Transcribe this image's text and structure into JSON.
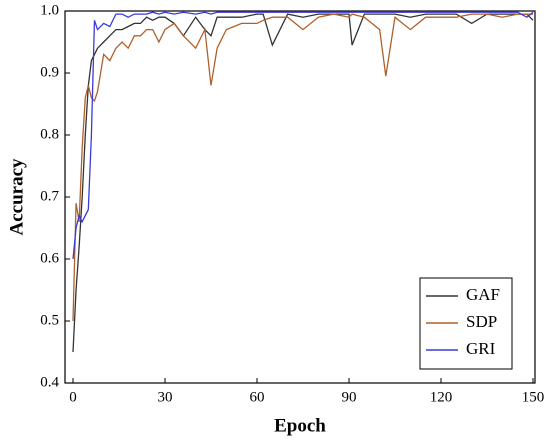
{
  "chart_data": {
    "type": "line",
    "x_label": "Epoch",
    "y_label": "Accuracy",
    "x": [
      0,
      1,
      2,
      3,
      4,
      5,
      6,
      7,
      8,
      10,
      12,
      14,
      16,
      18,
      20,
      22,
      24,
      26,
      28,
      30,
      33,
      36,
      40,
      43,
      45,
      47,
      50,
      55,
      60,
      62,
      65,
      70,
      75,
      80,
      85,
      90,
      91,
      95,
      100,
      102,
      105,
      110,
      115,
      120,
      125,
      130,
      135,
      140,
      145,
      148,
      150
    ],
    "series": [
      {
        "name": "GAF",
        "color": "#333333",
        "values": [
          0.45,
          0.55,
          0.62,
          0.7,
          0.8,
          0.88,
          0.92,
          0.93,
          0.94,
          0.95,
          0.96,
          0.97,
          0.97,
          0.975,
          0.98,
          0.98,
          0.99,
          0.985,
          0.99,
          0.99,
          0.98,
          0.96,
          0.99,
          0.97,
          0.96,
          0.99,
          0.99,
          0.99,
          0.995,
          0.995,
          0.945,
          0.995,
          0.99,
          0.995,
          0.995,
          0.995,
          0.945,
          0.995,
          0.995,
          0.995,
          0.995,
          0.99,
          0.995,
          0.995,
          0.995,
          0.98,
          0.995,
          0.995,
          0.995,
          0.995,
          0.985
        ]
      },
      {
        "name": "SDP",
        "color": "#b0602a",
        "values": [
          0.5,
          0.69,
          0.66,
          0.78,
          0.86,
          0.88,
          0.86,
          0.855,
          0.87,
          0.93,
          0.92,
          0.94,
          0.95,
          0.94,
          0.96,
          0.96,
          0.97,
          0.97,
          0.95,
          0.97,
          0.98,
          0.96,
          0.94,
          0.97,
          0.88,
          0.94,
          0.97,
          0.98,
          0.98,
          0.985,
          0.99,
          0.99,
          0.97,
          0.99,
          0.995,
          0.99,
          0.995,
          0.99,
          0.97,
          0.895,
          0.99,
          0.97,
          0.99,
          0.99,
          0.99,
          0.995,
          0.995,
          0.99,
          0.995,
          0.995,
          0.995
        ]
      },
      {
        "name": "GRI",
        "color": "#3a3ad8",
        "values": [
          0.6,
          0.65,
          0.67,
          0.66,
          0.67,
          0.68,
          0.8,
          0.985,
          0.97,
          0.98,
          0.975,
          0.995,
          0.995,
          0.99,
          0.995,
          0.995,
          0.995,
          0.998,
          0.995,
          0.998,
          0.995,
          0.998,
          0.995,
          0.998,
          0.995,
          0.998,
          0.998,
          0.998,
          0.998,
          0.998,
          0.998,
          0.998,
          0.998,
          0.998,
          0.998,
          0.998,
          0.998,
          0.998,
          0.998,
          0.998,
          0.998,
          0.998,
          0.998,
          0.998,
          0.998,
          0.998,
          0.998,
          0.998,
          0.998,
          0.99,
          0.998
        ]
      }
    ],
    "xlim": [
      0,
      150
    ],
    "xticks": [
      0,
      30,
      60,
      90,
      120,
      150
    ],
    "ylim": [
      0.4,
      1.0
    ],
    "yticks": [
      {
        "value": 0.4,
        "label": "0.4"
      },
      {
        "value": 0.5,
        "label": "0.5"
      },
      {
        "value": 0.6,
        "label": "0.6"
      },
      {
        "value": 0.7,
        "label": "0.7"
      },
      {
        "value": 0.8,
        "label": "0.8"
      },
      {
        "value": 0.9,
        "label": "0.9"
      },
      {
        "value": 1.0,
        "label": "1.0"
      }
    ],
    "legend": "lower right"
  }
}
